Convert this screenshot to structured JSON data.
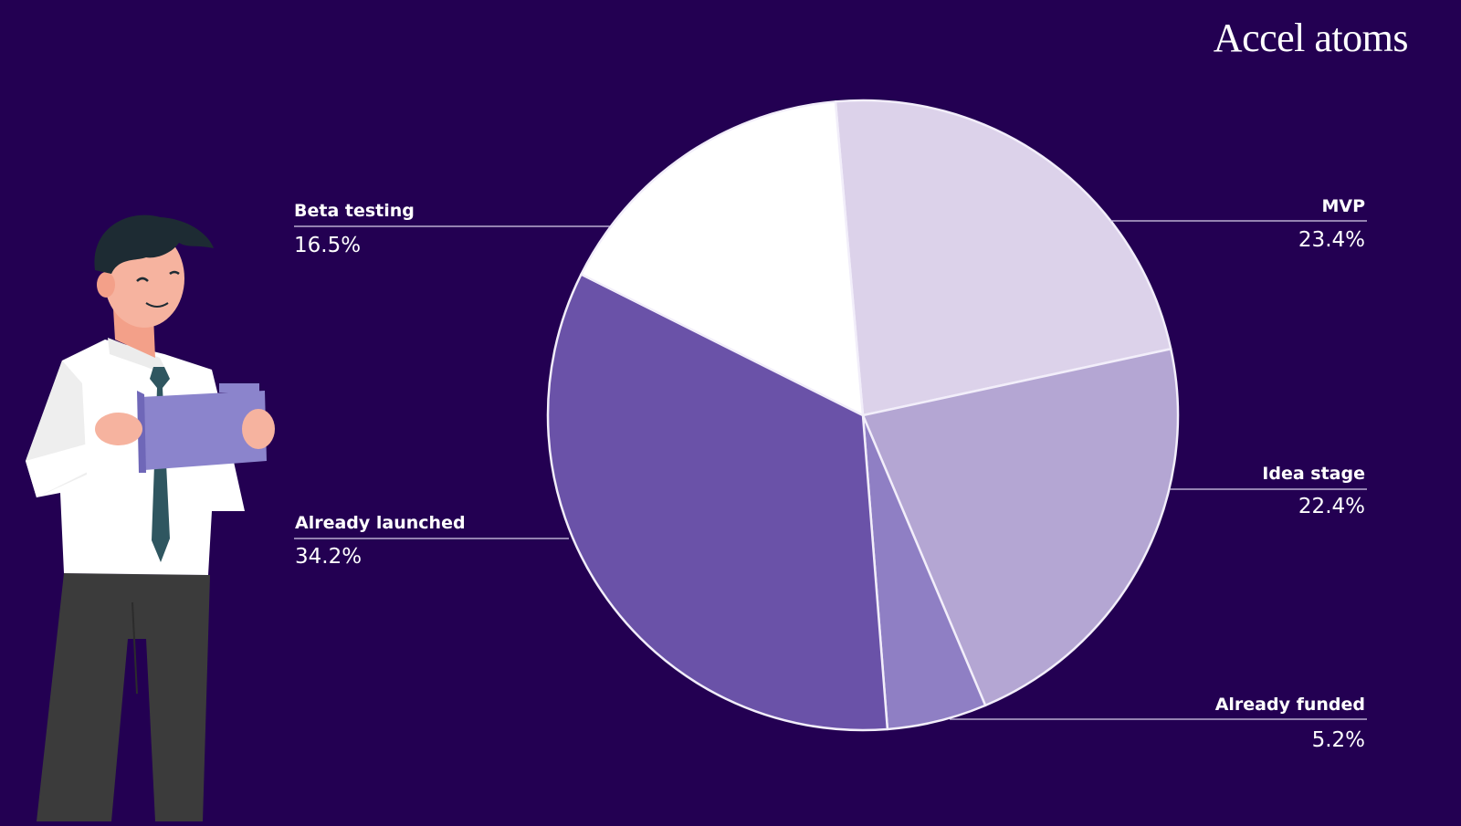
{
  "brand": {
    "logo_text": "Accel atoms"
  },
  "colors": {
    "background": "#230052",
    "slice_stroke": "#f2eefa"
  },
  "chart_data": {
    "type": "pie",
    "start_angle_deg": -5,
    "direction": "clockwise",
    "slices": [
      {
        "name": "MVP",
        "value": 23.4,
        "label": "23.4%",
        "color": "#dcd2ea"
      },
      {
        "name": "Idea stage",
        "value": 22.4,
        "label": "22.4%",
        "color": "#b4a6d3"
      },
      {
        "name": "Already funded",
        "value": 5.2,
        "label": "5.2%",
        "color": "#8f7fc4"
      },
      {
        "name": "Already launched",
        "value": 34.2,
        "label": "34.2%",
        "color": "#6a52a8"
      },
      {
        "name": "Beta testing",
        "value": 16.5,
        "label": "16.5%",
        "color": "#ffffff"
      }
    ]
  },
  "illustration": {
    "icon": "businessman-holding-folder-illustration"
  }
}
